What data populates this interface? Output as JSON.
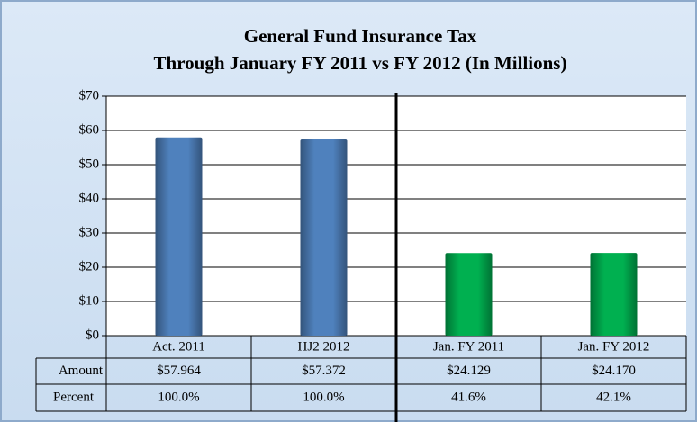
{
  "chart_data": {
    "type": "bar",
    "title": "General Fund Insurance Tax",
    "subtitle": "Through January FY 2011 vs FY 2012 (In Millions)",
    "categories": [
      "Act. 2011",
      "HJ2 2012",
      "Jan. FY 2011",
      "Jan. FY 2012"
    ],
    "values": [
      57.964,
      57.372,
      24.129,
      24.17
    ],
    "value_labels": [
      "$57.964",
      "$57.372",
      "$24.129",
      "$24.170"
    ],
    "colors": [
      "#4f81bd",
      "#4f81bd",
      "#00b050",
      "#00b050"
    ],
    "ylim": [
      0,
      70
    ],
    "yticks": [
      {
        "value": 0,
        "label": "$0"
      },
      {
        "value": 10,
        "label": "$10"
      },
      {
        "value": 20,
        "label": "$20"
      },
      {
        "value": 30,
        "label": "$30"
      },
      {
        "value": 40,
        "label": "$40"
      },
      {
        "value": 50,
        "label": "$50"
      },
      {
        "value": 60,
        "label": "$60"
      },
      {
        "value": 70,
        "label": "$70"
      }
    ],
    "grid": true,
    "amount_label": "Amount",
    "percent": {
      "label": "Percent",
      "values": [
        100.0,
        100.0,
        41.6,
        42.1
      ],
      "value_labels": [
        "100.0%",
        "100.0%",
        "41.6%",
        "42.1%"
      ]
    }
  }
}
